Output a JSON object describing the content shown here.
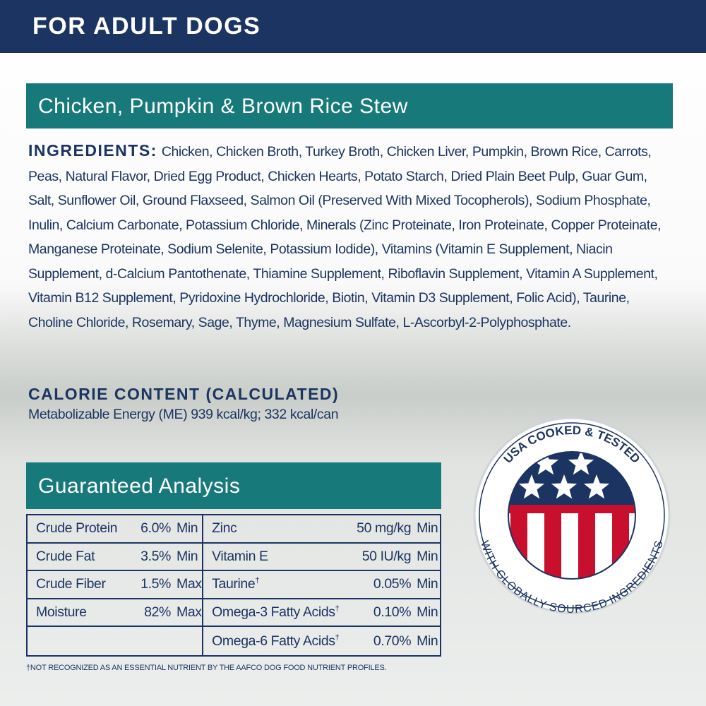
{
  "header": {
    "title": "FOR ADULT DOGS"
  },
  "product": {
    "title": "Chicken, Pumpkin & Brown Rice Stew"
  },
  "ingredients": {
    "label": "INGREDIENTS:",
    "text": "Chicken, Chicken Broth, Turkey Broth, Chicken Liver, Pumpkin, Brown Rice, Carrots, Peas, Natural Flavor, Dried Egg Product, Chicken Hearts, Potato Starch, Dried Plain Beet Pulp, Guar Gum, Salt, Sunflower Oil, Ground Flaxseed, Salmon Oil (Preserved With Mixed Tocopherols), Sodium Phosphate, Inulin, Calcium Carbonate, Potassium Chloride, Minerals (Zinc Proteinate, Iron Proteinate, Copper Proteinate, Manganese Proteinate, Sodium Selenite, Potassium Iodide), Vitamins (Vitamin E Supplement, Niacin Supplement, d-Calcium Pantothenate, Thiamine Supplement, Riboflavin Supplement, Vitamin A Supplement, Vitamin B12 Supplement, Pyridoxine Hydrochloride, Biotin, Vitamin D3 Supplement, Folic Acid), Taurine, Choline Chloride, Rosemary, Sage, Thyme, Magnesium Sulfate, L-Ascorbyl-2-Polyphosphate."
  },
  "calorie": {
    "heading": "CALORIE CONTENT (CALCULATED)",
    "text": "Metabolizable Energy (ME) 939 kcal/kg; 332 kcal/can"
  },
  "analysis": {
    "title": "Guaranteed Analysis",
    "left": [
      {
        "name": "Crude Protein",
        "value": "6.0%",
        "unit": "Min"
      },
      {
        "name": "Crude Fat",
        "value": "3.5%",
        "unit": "Min"
      },
      {
        "name": "Crude Fiber",
        "value": "1.5%",
        "unit": "Max"
      },
      {
        "name": "Moisture",
        "value": "82%",
        "unit": "Max"
      }
    ],
    "right": [
      {
        "name": "Zinc",
        "value": "50 mg/kg",
        "unit": "Min"
      },
      {
        "name": "Vitamin E",
        "value": "50 IU/kg",
        "unit": "Min"
      },
      {
        "name": "Taurine",
        "note": "†",
        "value": "0.05%",
        "unit": "Min"
      },
      {
        "name": "Omega-3 Fatty Acids",
        "note": "†",
        "value": "0.10%",
        "unit": "Min"
      },
      {
        "name": "Omega-6 Fatty Acids",
        "note": "†",
        "value": "0.70%",
        "unit": "Min"
      }
    ],
    "footnote": "†NOT RECOGNIZED AS AN ESSENTIAL NUTRIENT BY THE AAFCO DOG FOOD NUTRIENT PROFILES."
  },
  "badge": {
    "top": "USA COOKED & TESTED",
    "bottom": "WITH GLOBALLY SOURCED INGREDIENTS"
  }
}
